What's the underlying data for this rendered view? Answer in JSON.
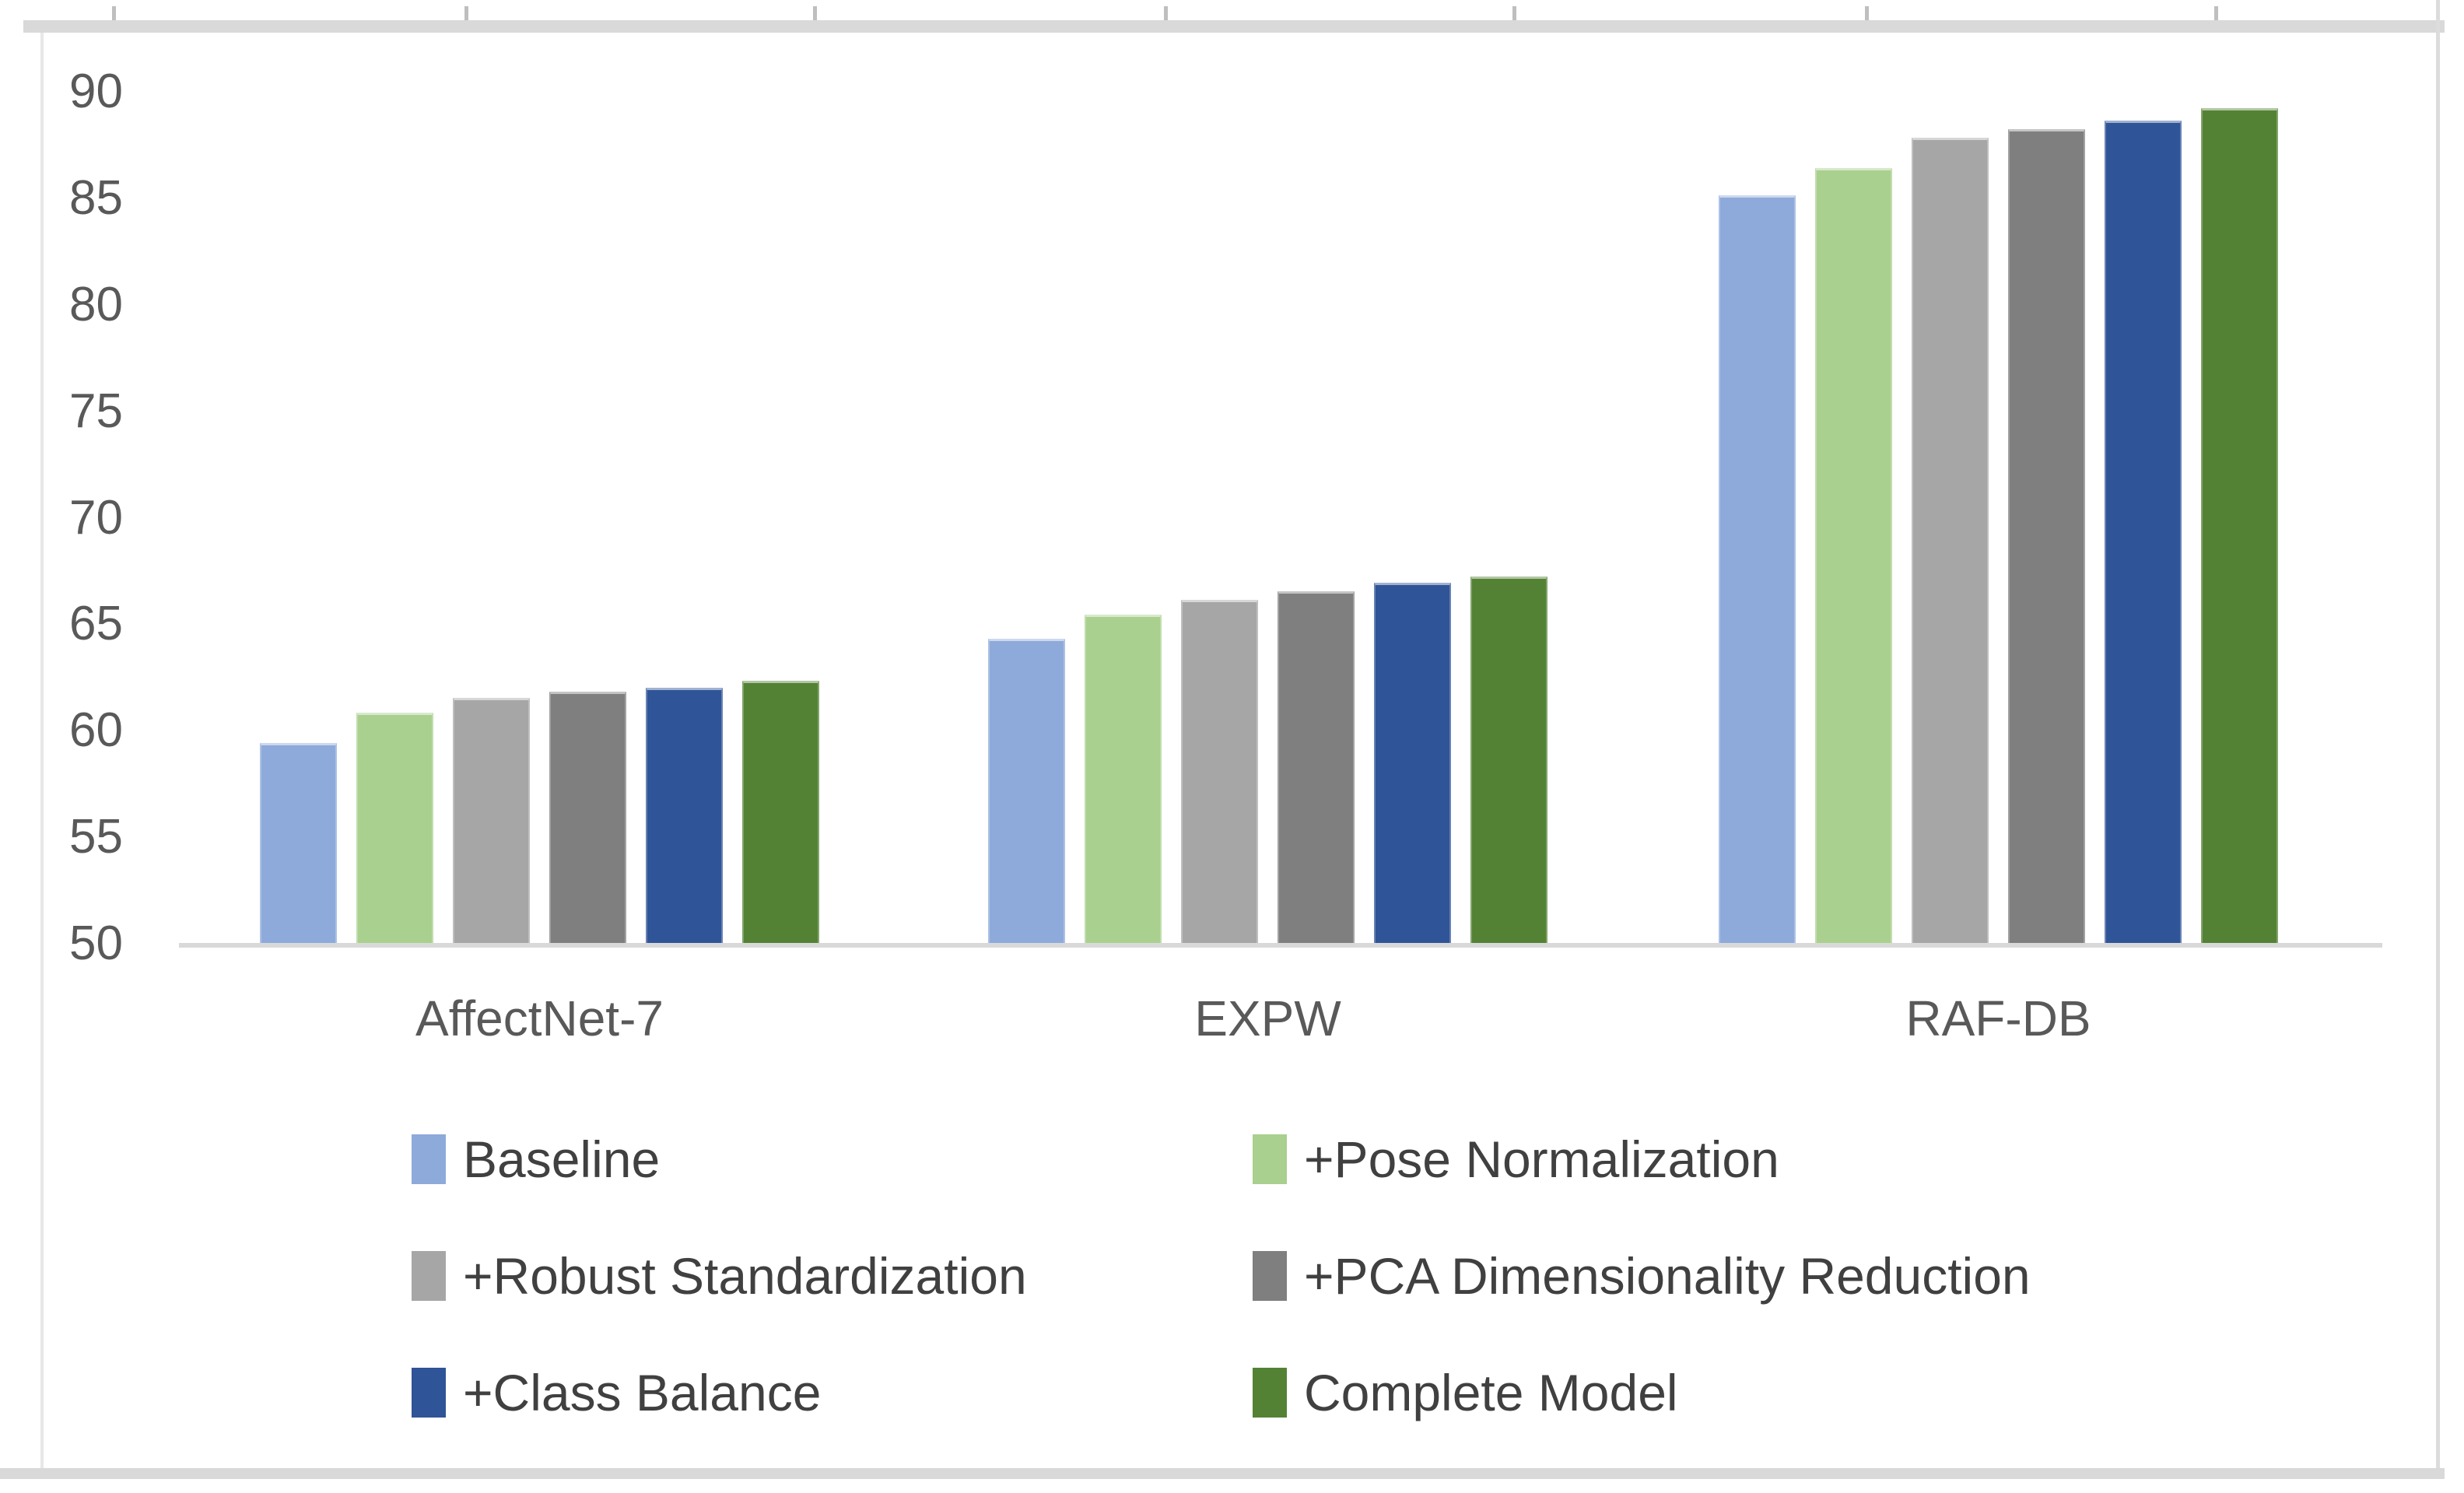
{
  "chart_data": {
    "type": "bar",
    "title": "",
    "xlabel": "",
    "ylabel": "",
    "categories": [
      "AffectNet-7",
      "EXPW",
      "RAF-DB"
    ],
    "series": [
      {
        "name": "Baseline",
        "color": "#8EAADB",
        "values": [
          59.4,
          64.3,
          85.1
        ]
      },
      {
        "name": "+Pose Normalization",
        "color": "#A9D08E",
        "values": [
          60.8,
          65.4,
          86.4
        ]
      },
      {
        "name": "+Robust Standardization",
        "color": "#A6A6A6",
        "values": [
          61.5,
          66.1,
          87.8
        ]
      },
      {
        "name": "+PCA Dimensionality Reduction",
        "color": "#7F7F7F",
        "values": [
          61.8,
          66.5,
          88.2
        ]
      },
      {
        "name": "+Class Balance",
        "color": "#2F5497",
        "values": [
          62.0,
          66.9,
          88.6
        ]
      },
      {
        "name": "Complete Model",
        "color": "#548235",
        "values": [
          62.3,
          67.2,
          89.2
        ]
      }
    ],
    "ylim": [
      50,
      90
    ],
    "ytick_step": 5,
    "yticks": [
      50,
      55,
      60,
      65,
      70,
      75,
      80,
      85,
      90
    ],
    "grid": false,
    "legend_position": "bottom-two-columns",
    "colors": {
      "axis_line": "#D9D9D9",
      "tick_label": "#595959",
      "category_label": "#595959",
      "legend_text": "#404040",
      "frame": "#D9D9D9"
    }
  }
}
